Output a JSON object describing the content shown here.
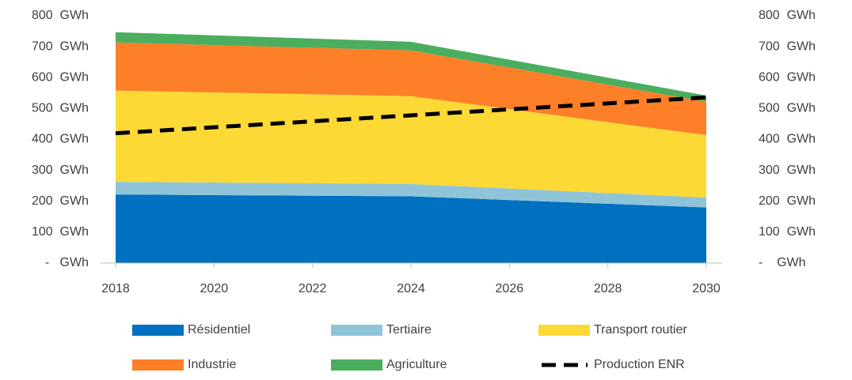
{
  "chart_data": {
    "type": "stacked_area_line",
    "x": [
      2018,
      2024,
      2030
    ],
    "series": [
      {
        "name": "Résidentiel",
        "color": "#0070c0",
        "values": [
          222,
          216,
          180
        ]
      },
      {
        "name": "Tertiaire",
        "color": "#8fc4d8",
        "values": [
          41,
          40,
          32
        ]
      },
      {
        "name": "Transport routier",
        "color": "#fdd936",
        "values": [
          295,
          284,
          202
        ]
      },
      {
        "name": "Industrie",
        "color": "#fd7f28",
        "values": [
          156,
          148,
          108
        ]
      },
      {
        "name": "Agriculture",
        "color": "#4bad5e",
        "values": [
          33,
          28,
          20
        ]
      },
      {
        "name": "Production ENR",
        "color": "#000000",
        "type": "line",
        "dashed": true,
        "values": [
          420,
          478,
          536
        ]
      }
    ],
    "xlim": [
      2018,
      2030
    ],
    "xticks": [
      2018,
      2020,
      2022,
      2024,
      2026,
      2028,
      2030
    ],
    "ylim": [
      0,
      800
    ],
    "yticks": [
      {
        "value": 0,
        "label": "-   GWh"
      },
      {
        "value": 100,
        "label": "100  GWh"
      },
      {
        "value": 200,
        "label": "200  GWh"
      },
      {
        "value": 300,
        "label": "300  GWh"
      },
      {
        "value": 400,
        "label": "400  GWh"
      },
      {
        "value": 500,
        "label": "500  GWh"
      },
      {
        "value": 600,
        "label": "600  GWh"
      },
      {
        "value": 700,
        "label": "700  GWh"
      },
      {
        "value": 800,
        "label": "800  GWh"
      }
    ],
    "y2lim": [
      0,
      800
    ],
    "y2ticks": [
      {
        "value": 0,
        "label": "-    GWh"
      },
      {
        "value": 100,
        "label": "100  GWh"
      },
      {
        "value": 200,
        "label": "200  GWh"
      },
      {
        "value": 300,
        "label": "300  GWh"
      },
      {
        "value": 400,
        "label": "400  GWh"
      },
      {
        "value": 500,
        "label": "500  GWh"
      },
      {
        "value": 600,
        "label": "600  GWh"
      },
      {
        "value": 700,
        "label": "700  GWh"
      },
      {
        "value": 800,
        "label": "800  GWh"
      }
    ],
    "grid": false,
    "legend": "bottom"
  }
}
